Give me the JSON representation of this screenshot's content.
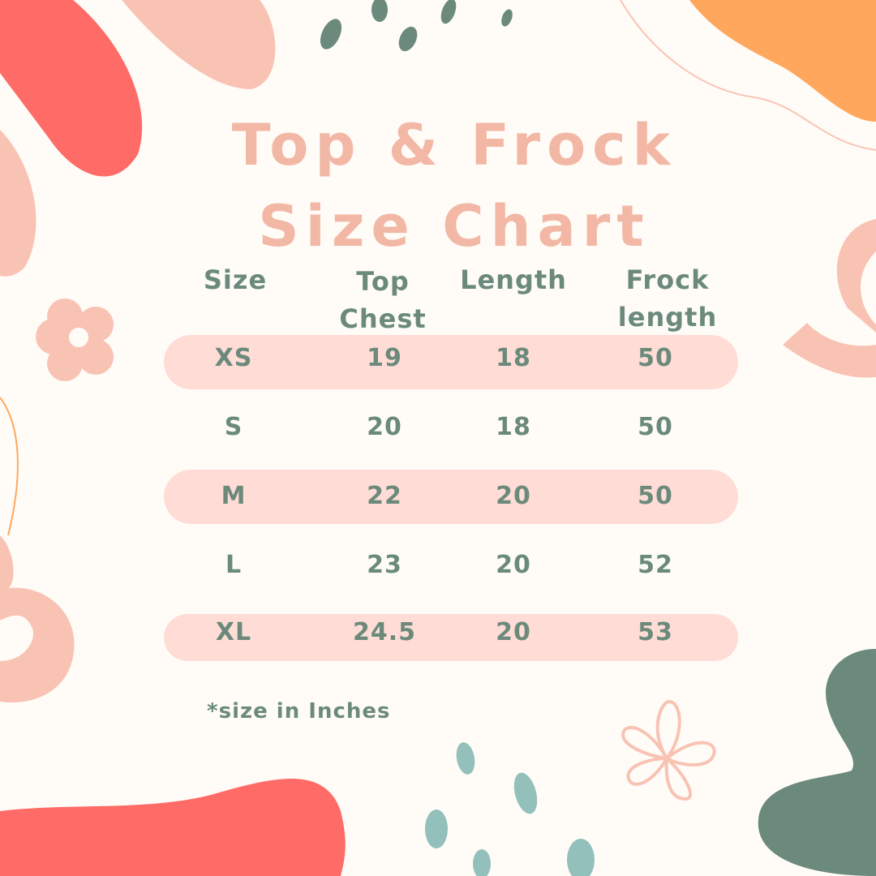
{
  "title": {
    "line1": "Top & Frock",
    "line2": "Size Chart"
  },
  "table": {
    "headers": [
      {
        "line1": "Size",
        "line2": ""
      },
      {
        "line1": "Top",
        "line2": "Chest"
      },
      {
        "line1": "Length",
        "line2": ""
      },
      {
        "line1": "Frock",
        "line2": "length"
      }
    ],
    "rows": [
      [
        "XS",
        "19",
        "18",
        "50"
      ],
      [
        "S",
        "20",
        "18",
        "50"
      ],
      [
        "M",
        "22",
        "20",
        "50"
      ],
      [
        "L",
        "23",
        "20",
        "52"
      ],
      [
        "XL",
        "24.5",
        "20",
        "53"
      ]
    ]
  },
  "note": "*size in Inches",
  "colors": {
    "background": "#fffcf8",
    "title": "#f2b8a5",
    "text": "#6b8a7c",
    "band": "#ffdcd5",
    "coral": "#ff6b66",
    "peach": "#f9c3b4",
    "orange": "#ffa75c",
    "green": "#6b8a7c",
    "teal": "#93c0ba"
  }
}
